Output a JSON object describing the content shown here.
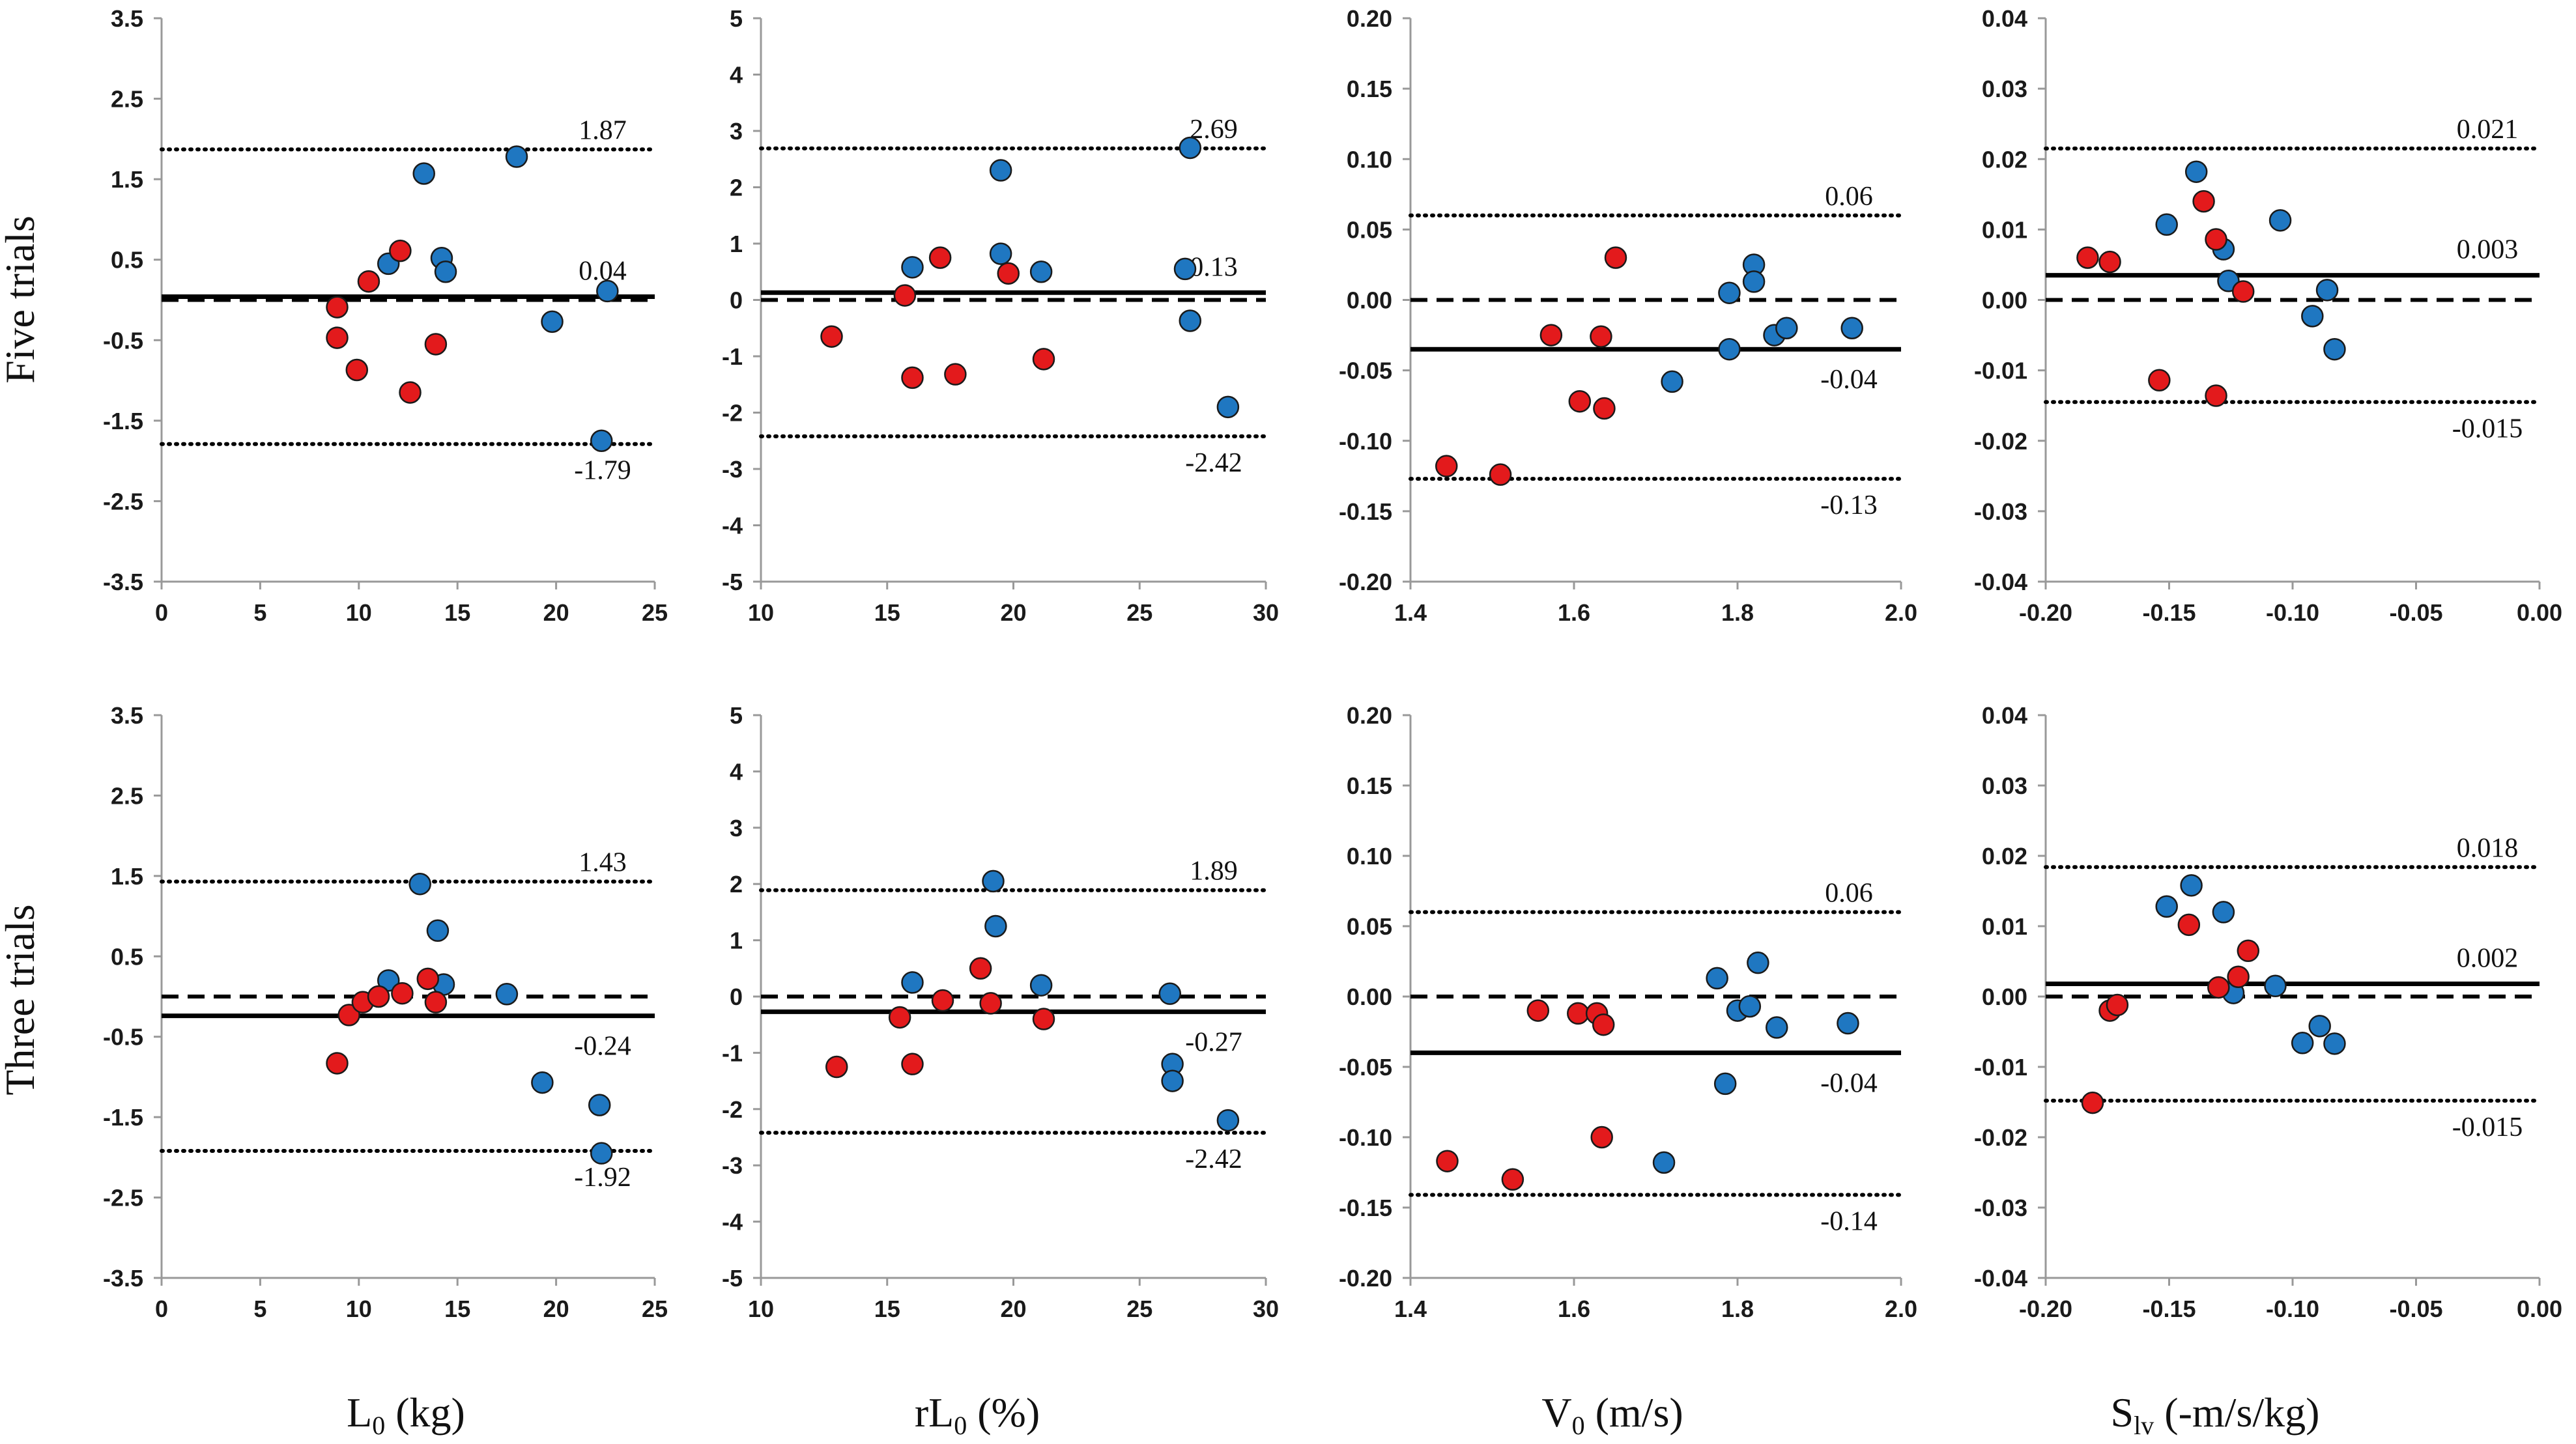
{
  "colors": {
    "blue": "#1f77c1",
    "red": "#e31a1c",
    "outline": "#1a1a1a",
    "line": "#000000"
  },
  "rows": [
    {
      "label": "Five trials"
    },
    {
      "label": "Three trials"
    }
  ],
  "columns": [
    {
      "prefix": "L",
      "sub": "0",
      "suffix": " (kg)",
      "title": "L0 (kg)"
    },
    {
      "prefix": "rL",
      "sub": "0",
      "suffix": " (%)",
      "title": "rL0 (%)"
    },
    {
      "prefix": "V",
      "sub": "0",
      "suffix": " (m/s)",
      "title": "V0 (m/s)"
    },
    {
      "prefix": "S",
      "sub": "lv",
      "suffix": " (-m/s/kg)",
      "title": "Slv (-m/s/kg)"
    }
  ],
  "chart_data": [
    {
      "type": "scatter",
      "row": 0,
      "col": 0,
      "xlim": [
        0,
        25
      ],
      "ylim": [
        -3.5,
        3.5
      ],
      "xticks": [
        "0",
        "5",
        "10",
        "15",
        "20",
        "25"
      ],
      "yticks": [
        "3.5",
        "2.5",
        "1.5",
        "0.5",
        "-0.5",
        "-1.5",
        "-2.5",
        "-3.5"
      ],
      "lines": {
        "upper": 1.87,
        "mean": 0.04,
        "lower": -1.79,
        "zero": 0
      },
      "labels": {
        "upper": "1.87",
        "mean": "0.04",
        "lower": "-1.79"
      },
      "series": [
        {
          "name": "blue",
          "points": [
            [
              11.5,
              0.45
            ],
            [
              13.3,
              1.57
            ],
            [
              14.2,
              0.52
            ],
            [
              14.4,
              0.35
            ],
            [
              18.0,
              1.78
            ],
            [
              19.8,
              -0.27
            ],
            [
              22.3,
              -1.75
            ],
            [
              22.6,
              0.11
            ]
          ]
        },
        {
          "name": "red",
          "points": [
            [
              8.9,
              -0.09
            ],
            [
              8.9,
              -0.47
            ],
            [
              9.9,
              -0.87
            ],
            [
              10.5,
              0.23
            ],
            [
              12.1,
              0.61
            ],
            [
              12.6,
              -1.15
            ],
            [
              13.9,
              -0.55
            ]
          ]
        }
      ]
    },
    {
      "type": "scatter",
      "row": 0,
      "col": 1,
      "xlim": [
        10,
        30
      ],
      "ylim": [
        -5,
        5
      ],
      "xticks": [
        "10",
        "15",
        "20",
        "25",
        "30"
      ],
      "yticks": [
        "5",
        "4",
        "3",
        "2",
        "1",
        "0",
        "-1",
        "-2",
        "-3",
        "-4",
        "-5"
      ],
      "lines": {
        "upper": 2.69,
        "mean": 0.13,
        "lower": -2.42,
        "zero": 0
      },
      "labels": {
        "upper": "2.69",
        "mean": "0.13",
        "lower": "-2.42"
      },
      "series": [
        {
          "name": "blue",
          "points": [
            [
              16.0,
              0.58
            ],
            [
              19.5,
              2.3
            ],
            [
              19.5,
              0.82
            ],
            [
              21.1,
              0.5
            ],
            [
              26.8,
              0.55
            ],
            [
              27.0,
              2.7
            ],
            [
              27.0,
              -0.37
            ],
            [
              28.5,
              -1.9
            ]
          ]
        },
        {
          "name": "red",
          "points": [
            [
              12.8,
              -0.65
            ],
            [
              15.7,
              0.08
            ],
            [
              16.0,
              -1.38
            ],
            [
              17.1,
              0.75
            ],
            [
              17.7,
              -1.32
            ],
            [
              19.8,
              0.47
            ],
            [
              21.2,
              -1.05
            ]
          ]
        }
      ]
    },
    {
      "type": "scatter",
      "row": 0,
      "col": 2,
      "xlim": [
        1.4,
        2.0
      ],
      "ylim": [
        -0.2,
        0.2
      ],
      "xticks": [
        "1.4",
        "1.6",
        "1.8",
        "2.0"
      ],
      "yticks": [
        "0.20",
        "0.15",
        "0.10",
        "0.05",
        "0.00",
        "-0.05",
        "-0.10",
        "-0.15",
        "-0.20"
      ],
      "lines": {
        "upper": 0.06,
        "mean": -0.035,
        "lower": -0.127,
        "zero": 0
      },
      "labels": {
        "upper": "0.06",
        "mean": "-0.04",
        "lower": "-0.13"
      },
      "series": [
        {
          "name": "blue",
          "points": [
            [
              1.72,
              -0.058
            ],
            [
              1.79,
              0.005
            ],
            [
              1.79,
              -0.035
            ],
            [
              1.82,
              0.025
            ],
            [
              1.82,
              0.013
            ],
            [
              1.845,
              -0.025
            ],
            [
              1.86,
              -0.02
            ],
            [
              1.94,
              -0.02
            ]
          ]
        },
        {
          "name": "red",
          "points": [
            [
              1.444,
              -0.118
            ],
            [
              1.51,
              -0.124
            ],
            [
              1.572,
              -0.025
            ],
            [
              1.607,
              -0.072
            ],
            [
              1.633,
              -0.026
            ],
            [
              1.637,
              -0.077
            ],
            [
              1.651,
              0.03
            ]
          ]
        }
      ]
    },
    {
      "type": "scatter",
      "row": 0,
      "col": 3,
      "xlim": [
        -0.2,
        0.0
      ],
      "ylim": [
        -0.04,
        0.04
      ],
      "xticks": [
        "-0.20",
        "-0.15",
        "-0.10",
        "-0.05",
        "0.00"
      ],
      "yticks": [
        "0.04",
        "0.03",
        "0.02",
        "0.01",
        "0.00",
        "-0.01",
        "-0.02",
        "-0.03",
        "-0.04"
      ],
      "lines": {
        "upper": 0.0215,
        "mean": 0.0035,
        "lower": -0.0145,
        "zero": 0
      },
      "labels": {
        "upper": "0.021",
        "mean": "0.003",
        "lower": "-0.015"
      },
      "series": [
        {
          "name": "blue",
          "points": [
            [
              -0.151,
              0.0107
            ],
            [
              -0.139,
              0.0182
            ],
            [
              -0.128,
              0.0072
            ],
            [
              -0.126,
              0.0027
            ],
            [
              -0.105,
              0.0113
            ],
            [
              -0.092,
              -0.0023
            ],
            [
              -0.086,
              0.0014
            ],
            [
              -0.083,
              -0.007
            ]
          ]
        },
        {
          "name": "red",
          "points": [
            [
              -0.183,
              0.006
            ],
            [
              -0.174,
              0.0054
            ],
            [
              -0.154,
              -0.0114
            ],
            [
              -0.136,
              0.014
            ],
            [
              -0.131,
              0.0086
            ],
            [
              -0.131,
              -0.0136
            ],
            [
              -0.12,
              0.0012
            ]
          ]
        }
      ]
    },
    {
      "type": "scatter",
      "row": 1,
      "col": 0,
      "xlim": [
        0,
        25
      ],
      "ylim": [
        -3.5,
        3.5
      ],
      "xticks": [
        "0",
        "5",
        "10",
        "15",
        "20",
        "25"
      ],
      "yticks": [
        "3.5",
        "2.5",
        "1.5",
        "0.5",
        "-0.5",
        "-1.5",
        "-2.5",
        "-3.5"
      ],
      "lines": {
        "upper": 1.43,
        "mean": -0.24,
        "lower": -1.92,
        "zero": 0
      },
      "labels": {
        "upper": "1.43",
        "mean": "-0.24",
        "lower": "-1.92"
      },
      "series": [
        {
          "name": "blue",
          "points": [
            [
              11.5,
              0.2
            ],
            [
              13.1,
              1.4
            ],
            [
              14.0,
              0.82
            ],
            [
              14.3,
              0.15
            ],
            [
              17.5,
              0.03
            ],
            [
              19.3,
              -1.07
            ],
            [
              22.2,
              -1.35
            ],
            [
              22.3,
              -1.95
            ]
          ]
        },
        {
          "name": "red",
          "points": [
            [
              8.9,
              -0.83
            ],
            [
              9.5,
              -0.23
            ],
            [
              10.2,
              -0.07
            ],
            [
              12.2,
              0.04
            ],
            [
              13.5,
              0.22
            ],
            [
              13.9,
              -0.07
            ],
            [
              11.0,
              -0.0
            ]
          ]
        }
      ]
    },
    {
      "type": "scatter",
      "row": 1,
      "col": 1,
      "xlim": [
        10,
        30
      ],
      "ylim": [
        -5,
        5
      ],
      "xticks": [
        "10",
        "15",
        "20",
        "25",
        "30"
      ],
      "yticks": [
        "5",
        "4",
        "3",
        "2",
        "1",
        "0",
        "-1",
        "-2",
        "-3",
        "-4",
        "-5"
      ],
      "lines": {
        "upper": 1.89,
        "mean": -0.27,
        "lower": -2.42,
        "zero": 0
      },
      "labels": {
        "upper": "1.89",
        "mean": "-0.27",
        "lower": "-2.42"
      },
      "series": [
        {
          "name": "blue",
          "points": [
            [
              16.0,
              0.25
            ],
            [
              19.2,
              2.05
            ],
            [
              19.3,
              1.25
            ],
            [
              21.1,
              0.2
            ],
            [
              26.2,
              0.05
            ],
            [
              26.3,
              -1.2
            ],
            [
              26.3,
              -1.5
            ],
            [
              28.5,
              -2.2
            ]
          ]
        },
        {
          "name": "red",
          "points": [
            [
              13.0,
              -1.25
            ],
            [
              15.5,
              -0.37
            ],
            [
              16.0,
              -1.2
            ],
            [
              17.2,
              -0.07
            ],
            [
              18.7,
              0.5
            ],
            [
              19.1,
              -0.12
            ],
            [
              21.2,
              -0.4
            ]
          ]
        }
      ]
    },
    {
      "type": "scatter",
      "row": 1,
      "col": 2,
      "xlim": [
        1.4,
        2.0
      ],
      "ylim": [
        -0.2,
        0.2
      ],
      "xticks": [
        "1.4",
        "1.6",
        "1.8",
        "2.0"
      ],
      "yticks": [
        "0.20",
        "0.15",
        "0.10",
        "0.05",
        "0.00",
        "-0.05",
        "-0.10",
        "-0.15",
        "-0.20"
      ],
      "lines": {
        "upper": 0.06,
        "mean": -0.04,
        "lower": -0.141,
        "zero": 0
      },
      "labels": {
        "upper": "0.06",
        "mean": "-0.04",
        "lower": "-0.14"
      },
      "series": [
        {
          "name": "blue",
          "points": [
            [
              1.71,
              -0.118
            ],
            [
              1.775,
              0.013
            ],
            [
              1.785,
              -0.062
            ],
            [
              1.8,
              -0.01
            ],
            [
              1.815,
              -0.007
            ],
            [
              1.825,
              0.024
            ],
            [
              1.848,
              -0.022
            ],
            [
              1.935,
              -0.019
            ]
          ]
        },
        {
          "name": "red",
          "points": [
            [
              1.445,
              -0.117
            ],
            [
              1.525,
              -0.13
            ],
            [
              1.556,
              -0.01
            ],
            [
              1.605,
              -0.012
            ],
            [
              1.628,
              -0.012
            ],
            [
              1.634,
              -0.1
            ],
            [
              1.636,
              -0.02
            ]
          ]
        }
      ]
    },
    {
      "type": "scatter",
      "row": 1,
      "col": 3,
      "xlim": [
        -0.2,
        0.0
      ],
      "ylim": [
        -0.04,
        0.04
      ],
      "xticks": [
        "-0.20",
        "-0.15",
        "-0.10",
        "-0.05",
        "0.00"
      ],
      "yticks": [
        "0.04",
        "0.03",
        "0.02",
        "0.01",
        "0.00",
        "-0.01",
        "-0.02",
        "-0.03",
        "-0.04"
      ],
      "lines": {
        "upper": 0.0184,
        "mean": 0.0018,
        "lower": -0.0148,
        "zero": 0
      },
      "labels": {
        "upper": "0.018",
        "mean": "0.002",
        "lower": "-0.015"
      },
      "series": [
        {
          "name": "blue",
          "points": [
            [
              -0.151,
              0.0128
            ],
            [
              -0.141,
              0.0158
            ],
            [
              -0.128,
              0.012
            ],
            [
              -0.124,
              0.0005
            ],
            [
              -0.107,
              0.0015
            ],
            [
              -0.096,
              -0.0066
            ],
            [
              -0.089,
              -0.0042
            ],
            [
              -0.083,
              -0.0067
            ]
          ]
        },
        {
          "name": "red",
          "points": [
            [
              -0.181,
              -0.0151
            ],
            [
              -0.174,
              -0.002
            ],
            [
              -0.171,
              -0.0012
            ],
            [
              -0.142,
              0.0102
            ],
            [
              -0.13,
              0.0013
            ],
            [
              -0.122,
              0.0028
            ],
            [
              -0.118,
              0.0065
            ]
          ]
        }
      ]
    }
  ]
}
